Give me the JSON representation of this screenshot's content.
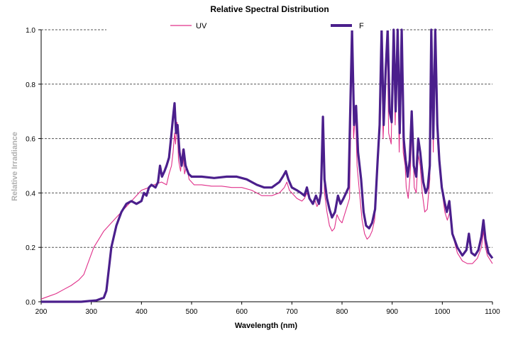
{
  "chart_data": {
    "type": "line",
    "title": "Relative Spectral Distribution",
    "xlabel": "Wavelength (nm)",
    "ylabel": "Relative Irradiance",
    "xlim": [
      200,
      1100
    ],
    "ylim": [
      0,
      1.0
    ],
    "x_ticks": [
      "200",
      "300",
      "400",
      "500",
      "600",
      "700",
      "800",
      "900",
      "1000",
      "1100"
    ],
    "y_ticks": [
      "0.0",
      "0.2",
      "0.4",
      "0.6",
      "0.8",
      "1.0"
    ],
    "grid": "horizontal dashed",
    "legend_position": "top",
    "series": [
      {
        "name": "UV",
        "color": "#e0308a",
        "points": [
          [
            200,
            0.01
          ],
          [
            215,
            0.02
          ],
          [
            230,
            0.03
          ],
          [
            245,
            0.045
          ],
          [
            260,
            0.06
          ],
          [
            275,
            0.08
          ],
          [
            285,
            0.1
          ],
          [
            295,
            0.15
          ],
          [
            305,
            0.2
          ],
          [
            315,
            0.23
          ],
          [
            325,
            0.26
          ],
          [
            340,
            0.29
          ],
          [
            355,
            0.32
          ],
          [
            370,
            0.35
          ],
          [
            385,
            0.38
          ],
          [
            400,
            0.41
          ],
          [
            415,
            0.42
          ],
          [
            425,
            0.43
          ],
          [
            440,
            0.44
          ],
          [
            450,
            0.43
          ],
          [
            455,
            0.47
          ],
          [
            460,
            0.5
          ],
          [
            463,
            0.55
          ],
          [
            466,
            0.62
          ],
          [
            468,
            0.58
          ],
          [
            471,
            0.66
          ],
          [
            474,
            0.52
          ],
          [
            478,
            0.48
          ],
          [
            482,
            0.56
          ],
          [
            486,
            0.47
          ],
          [
            490,
            0.5
          ],
          [
            495,
            0.45
          ],
          [
            505,
            0.43
          ],
          [
            520,
            0.43
          ],
          [
            540,
            0.425
          ],
          [
            560,
            0.425
          ],
          [
            580,
            0.42
          ],
          [
            600,
            0.42
          ],
          [
            620,
            0.41
          ],
          [
            640,
            0.39
          ],
          [
            660,
            0.39
          ],
          [
            675,
            0.4
          ],
          [
            685,
            0.42
          ],
          [
            690,
            0.44
          ],
          [
            695,
            0.41
          ],
          [
            700,
            0.4
          ],
          [
            710,
            0.38
          ],
          [
            720,
            0.37
          ],
          [
            725,
            0.38
          ],
          [
            730,
            0.4
          ],
          [
            735,
            0.38
          ],
          [
            740,
            0.36
          ],
          [
            745,
            0.38
          ],
          [
            750,
            0.35
          ],
          [
            755,
            0.37
          ],
          [
            758,
            0.39
          ],
          [
            762,
            0.67
          ],
          [
            765,
            0.4
          ],
          [
            770,
            0.33
          ],
          [
            775,
            0.28
          ],
          [
            780,
            0.26
          ],
          [
            785,
            0.27
          ],
          [
            790,
            0.32
          ],
          [
            795,
            0.3
          ],
          [
            800,
            0.29
          ],
          [
            805,
            0.32
          ],
          [
            810,
            0.35
          ],
          [
            815,
            0.38
          ],
          [
            818,
            0.7
          ],
          [
            820,
            0.98
          ],
          [
            823,
            0.6
          ],
          [
            827,
            0.7
          ],
          [
            830,
            0.5
          ],
          [
            835,
            0.4
          ],
          [
            840,
            0.3
          ],
          [
            845,
            0.25
          ],
          [
            850,
            0.23
          ],
          [
            855,
            0.24
          ],
          [
            860,
            0.26
          ],
          [
            865,
            0.3
          ],
          [
            870,
            0.45
          ],
          [
            873,
            0.58
          ],
          [
            878,
            1.0
          ],
          [
            882,
            0.6
          ],
          [
            886,
            0.8
          ],
          [
            890,
            1.0
          ],
          [
            893,
            0.62
          ],
          [
            898,
            0.58
          ],
          [
            902,
            1.0
          ],
          [
            906,
            0.65
          ],
          [
            910,
            1.0
          ],
          [
            914,
            0.55
          ],
          [
            918,
            1.0
          ],
          [
            922,
            0.55
          ],
          [
            926,
            0.5
          ],
          [
            928,
            0.42
          ],
          [
            932,
            0.38
          ],
          [
            936,
            0.47
          ],
          [
            940,
            0.66
          ],
          [
            944,
            0.42
          ],
          [
            948,
            0.4
          ],
          [
            952,
            0.54
          ],
          [
            956,
            0.5
          ],
          [
            960,
            0.4
          ],
          [
            965,
            0.33
          ],
          [
            970,
            0.34
          ],
          [
            975,
            0.45
          ],
          [
            978,
            1.0
          ],
          [
            982,
            0.55
          ],
          [
            985,
            1.0
          ],
          [
            990,
            0.6
          ],
          [
            995,
            0.48
          ],
          [
            1000,
            0.4
          ],
          [
            1005,
            0.33
          ],
          [
            1010,
            0.3
          ],
          [
            1015,
            0.33
          ],
          [
            1020,
            0.25
          ],
          [
            1030,
            0.18
          ],
          [
            1040,
            0.15
          ],
          [
            1050,
            0.14
          ],
          [
            1060,
            0.14
          ],
          [
            1070,
            0.16
          ],
          [
            1078,
            0.2
          ],
          [
            1082,
            0.26
          ],
          [
            1086,
            0.2
          ],
          [
            1090,
            0.17
          ],
          [
            1100,
            0.14
          ]
        ]
      },
      {
        "name": "F",
        "color": "#4b1f8c",
        "points": [
          [
            200,
            0.0
          ],
          [
            240,
            0.0
          ],
          [
            280,
            0.0
          ],
          [
            310,
            0.005
          ],
          [
            325,
            0.015
          ],
          [
            330,
            0.04
          ],
          [
            335,
            0.12
          ],
          [
            340,
            0.2
          ],
          [
            350,
            0.28
          ],
          [
            360,
            0.33
          ],
          [
            370,
            0.36
          ],
          [
            380,
            0.37
          ],
          [
            390,
            0.36
          ],
          [
            400,
            0.37
          ],
          [
            405,
            0.4
          ],
          [
            410,
            0.39
          ],
          [
            415,
            0.42
          ],
          [
            420,
            0.43
          ],
          [
            428,
            0.42
          ],
          [
            433,
            0.44
          ],
          [
            437,
            0.5
          ],
          [
            441,
            0.46
          ],
          [
            446,
            0.48
          ],
          [
            450,
            0.5
          ],
          [
            455,
            0.53
          ],
          [
            459,
            0.6
          ],
          [
            463,
            0.68
          ],
          [
            466,
            0.73
          ],
          [
            469,
            0.62
          ],
          [
            472,
            0.65
          ],
          [
            476,
            0.55
          ],
          [
            480,
            0.5
          ],
          [
            484,
            0.56
          ],
          [
            488,
            0.5
          ],
          [
            494,
            0.47
          ],
          [
            500,
            0.46
          ],
          [
            520,
            0.46
          ],
          [
            545,
            0.455
          ],
          [
            570,
            0.46
          ],
          [
            590,
            0.46
          ],
          [
            610,
            0.45
          ],
          [
            630,
            0.43
          ],
          [
            645,
            0.42
          ],
          [
            660,
            0.42
          ],
          [
            675,
            0.44
          ],
          [
            682,
            0.46
          ],
          [
            688,
            0.48
          ],
          [
            693,
            0.45
          ],
          [
            700,
            0.42
          ],
          [
            710,
            0.41
          ],
          [
            718,
            0.4
          ],
          [
            725,
            0.39
          ],
          [
            730,
            0.42
          ],
          [
            735,
            0.38
          ],
          [
            742,
            0.36
          ],
          [
            748,
            0.39
          ],
          [
            754,
            0.36
          ],
          [
            758,
            0.4
          ],
          [
            762,
            0.68
          ],
          [
            765,
            0.45
          ],
          [
            770,
            0.38
          ],
          [
            775,
            0.34
          ],
          [
            780,
            0.31
          ],
          [
            786,
            0.33
          ],
          [
            792,
            0.39
          ],
          [
            797,
            0.36
          ],
          [
            803,
            0.38
          ],
          [
            808,
            0.4
          ],
          [
            813,
            0.42
          ],
          [
            817,
            0.75
          ],
          [
            820,
            1.0
          ],
          [
            824,
            0.65
          ],
          [
            828,
            0.72
          ],
          [
            832,
            0.55
          ],
          [
            838,
            0.45
          ],
          [
            843,
            0.33
          ],
          [
            848,
            0.28
          ],
          [
            854,
            0.27
          ],
          [
            860,
            0.29
          ],
          [
            866,
            0.34
          ],
          [
            871,
            0.52
          ],
          [
            875,
            0.65
          ],
          [
            879,
            1.0
          ],
          [
            883,
            0.65
          ],
          [
            887,
            0.85
          ],
          [
            891,
            1.0
          ],
          [
            895,
            0.7
          ],
          [
            899,
            0.66
          ],
          [
            903,
            1.0
          ],
          [
            907,
            0.7
          ],
          [
            911,
            1.0
          ],
          [
            915,
            0.62
          ],
          [
            919,
            1.0
          ],
          [
            923,
            0.6
          ],
          [
            927,
            0.52
          ],
          [
            931,
            0.46
          ],
          [
            935,
            0.52
          ],
          [
            939,
            0.7
          ],
          [
            943,
            0.5
          ],
          [
            948,
            0.46
          ],
          [
            952,
            0.6
          ],
          [
            956,
            0.55
          ],
          [
            962,
            0.44
          ],
          [
            967,
            0.4
          ],
          [
            971,
            0.42
          ],
          [
            975,
            0.5
          ],
          [
            978,
            1.0
          ],
          [
            982,
            0.6
          ],
          [
            986,
            1.0
          ],
          [
            990,
            0.65
          ],
          [
            994,
            0.52
          ],
          [
            999,
            0.42
          ],
          [
            1004,
            0.37
          ],
          [
            1009,
            0.33
          ],
          [
            1014,
            0.37
          ],
          [
            1020,
            0.25
          ],
          [
            1030,
            0.2
          ],
          [
            1040,
            0.17
          ],
          [
            1048,
            0.19
          ],
          [
            1053,
            0.25
          ],
          [
            1058,
            0.18
          ],
          [
            1065,
            0.17
          ],
          [
            1072,
            0.19
          ],
          [
            1078,
            0.24
          ],
          [
            1082,
            0.3
          ],
          [
            1086,
            0.23
          ],
          [
            1092,
            0.18
          ],
          [
            1100,
            0.16
          ]
        ]
      }
    ]
  }
}
